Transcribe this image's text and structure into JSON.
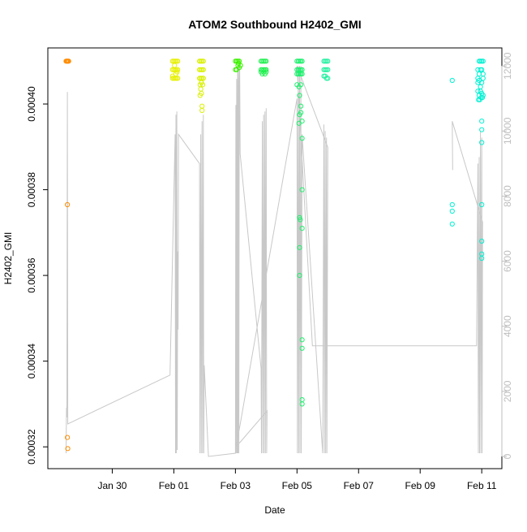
{
  "chart_data": {
    "type": "scatter",
    "title": "ATOM2 Southbound H2402_GMI",
    "xlabel": "Date",
    "ylabel": "H2402_GMI",
    "xlim": [
      "2018-01-28T06:00",
      "2018-02-11T10:00"
    ],
    "ylim": [
      0.000317,
      0.000411
    ],
    "y2lim": [
      -100,
      12280
    ],
    "x_ticks": [
      {
        "t": "2018-01-30",
        "label": "Jan 30"
      },
      {
        "t": "2018-02-01",
        "label": "Feb 01"
      },
      {
        "t": "2018-02-03",
        "label": "Feb 03"
      },
      {
        "t": "2018-02-05",
        "label": "Feb 05"
      },
      {
        "t": "2018-02-07",
        "label": "Feb 07"
      },
      {
        "t": "2018-02-09",
        "label": "Feb 09"
      },
      {
        "t": "2018-02-11",
        "label": "Feb 11"
      }
    ],
    "y_ticks": [
      {
        "v": 0.00032,
        "label": "0.00032"
      },
      {
        "v": 0.00034,
        "label": "0.00034"
      },
      {
        "v": 0.00036,
        "label": "0.00036"
      },
      {
        "v": 0.00038,
        "label": "0.00038"
      },
      {
        "v": 0.0004,
        "label": "0.00040"
      }
    ],
    "y2_ticks": [
      {
        "v": 0,
        "label": "0"
      },
      {
        "v": 2000,
        "label": "2000"
      },
      {
        "v": 4000,
        "label": "4000"
      },
      {
        "v": 6000,
        "label": "6000"
      },
      {
        "v": 8000,
        "label": "8000"
      },
      {
        "v": 10000,
        "label": "10000"
      },
      {
        "v": 12000,
        "label": "12000"
      }
    ],
    "grid": false,
    "legend": "none",
    "colors": {
      "axis": "#000000",
      "secondary_axis": "#bebebe",
      "secondary_line": "#c8c8c8",
      "clusters": [
        "#ff8c00",
        "#e6f000",
        "#d9f000",
        "#3cf000",
        "#22f050",
        "#1ef06e",
        "#24f0a0",
        "#00f0d2"
      ]
    },
    "secondary_series": {
      "axis": "right",
      "style": "line",
      "points": [
        [
          "2018-01-28T12:00",
          100
        ],
        [
          "2018-01-28T12:20",
          1500
        ],
        [
          "2018-01-28T12:40",
          1200
        ],
        [
          "2018-01-28T13:00",
          11200
        ],
        [
          "2018-01-28T13:20",
          1000
        ],
        [
          "2018-01-31T21:00",
          2500
        ],
        [
          "2018-02-01T01:00",
          9900
        ],
        [
          "2018-02-01T01:20",
          100
        ],
        [
          "2018-02-01T01:40",
          10500
        ],
        [
          "2018-02-01T02:00",
          100
        ],
        [
          "2018-02-01T02:20",
          10600
        ],
        [
          "2018-02-01T02:40",
          200
        ],
        [
          "2018-02-01T03:00",
          6300
        ],
        [
          "2018-02-01T03:20",
          3900
        ],
        [
          "2018-02-01T03:40",
          9900
        ],
        [
          "2018-02-01T20:00",
          9000
        ],
        [
          "2018-02-01T20:20",
          100
        ],
        [
          "2018-02-01T21:00",
          9900
        ],
        [
          "2018-02-01T21:20",
          100
        ],
        [
          "2018-02-01T22:00",
          10300
        ],
        [
          "2018-02-01T22:20",
          100
        ],
        [
          "2018-02-01T23:00",
          10500
        ],
        [
          "2018-02-01T23:20",
          100
        ],
        [
          "2018-02-01T23:40",
          2800
        ],
        [
          "2018-02-02T03:00",
          0
        ],
        [
          "2018-02-03T00:00",
          100
        ],
        [
          "2018-02-03T00:20",
          10800
        ],
        [
          "2018-02-03T00:40",
          100
        ],
        [
          "2018-02-03T01:00",
          11600
        ],
        [
          "2018-02-03T01:20",
          100
        ],
        [
          "2018-02-03T01:40",
          11900
        ],
        [
          "2018-02-03T02:00",
          100
        ],
        [
          "2018-02-03T02:20",
          12000
        ],
        [
          "2018-02-03T02:40",
          100
        ],
        [
          "2018-02-03T03:00",
          11500
        ],
        [
          "2018-02-03T03:20",
          12000
        ],
        [
          "2018-02-03T03:40",
          9300
        ],
        [
          "2018-02-03T20:00",
          2700
        ],
        [
          "2018-02-03T20:20",
          100
        ],
        [
          "2018-02-03T21:00",
          10300
        ],
        [
          "2018-02-03T21:20",
          100
        ],
        [
          "2018-02-03T22:00",
          10500
        ],
        [
          "2018-02-03T22:20",
          100
        ],
        [
          "2018-02-03T23:00",
          10600
        ],
        [
          "2018-02-03T23:20",
          100
        ],
        [
          "2018-02-04T00:00",
          10700
        ],
        [
          "2018-02-04T00:20",
          100
        ],
        [
          "2018-02-04T00:40",
          1400
        ],
        [
          "2018-02-03T00:40",
          300
        ],
        [
          "2018-02-05T00:00",
          11000
        ],
        [
          "2018-02-05T00:20",
          100
        ],
        [
          "2018-02-05T01:00",
          12000
        ],
        [
          "2018-02-05T01:20",
          100
        ],
        [
          "2018-02-05T02:00",
          12000
        ],
        [
          "2018-02-05T02:20",
          100
        ],
        [
          "2018-02-05T03:00",
          12000
        ],
        [
          "2018-02-05T03:20",
          100
        ],
        [
          "2018-02-05T04:00",
          9900
        ],
        [
          "2018-02-05T20:00",
          100
        ],
        [
          "2018-02-05T21:00",
          10200
        ],
        [
          "2018-02-05T21:20",
          100
        ],
        [
          "2018-02-05T22:00",
          10000
        ],
        [
          "2018-02-05T22:20",
          100
        ],
        [
          "2018-02-05T23:00",
          9800
        ],
        [
          "2018-02-05T23:20",
          100
        ],
        [
          "2018-02-06T00:00",
          9500
        ],
        [
          "2018-02-05T00:00",
          12000
        ],
        [
          "2018-02-05T12:00",
          3400
        ],
        [
          "2018-02-10T20:00",
          3400
        ],
        [
          "2018-02-10T21:00",
          9000
        ],
        [
          "2018-02-10T21:20",
          100
        ],
        [
          "2018-02-10T22:00",
          9200
        ],
        [
          "2018-02-10T22:20",
          100
        ],
        [
          "2018-02-10T23:00",
          10000
        ],
        [
          "2018-02-10T23:20",
          100
        ],
        [
          "2018-02-11T00:00",
          9800
        ],
        [
          "2018-02-11T00:20",
          100
        ],
        [
          "2018-02-11T00:40",
          7200
        ],
        [
          "2018-02-10T01:00",
          10300
        ],
        [
          "2018-02-10T01:20",
          8800
        ]
      ]
    },
    "series": [
      {
        "color": "#ff8c00",
        "points": [
          [
            "2018-01-28T12:00",
            0.00041
          ],
          [
            "2018-01-28T12:30",
            0.00041
          ],
          [
            "2018-01-28T13:00",
            0.00041
          ],
          [
            "2018-01-28T13:30",
            0.00041
          ],
          [
            "2018-01-28T14:00",
            0.00041
          ],
          [
            "2018-01-28T13:00",
            0.0003765
          ],
          [
            "2018-01-28T13:00",
            0.0003222
          ],
          [
            "2018-01-28T13:20",
            0.0003196
          ]
        ]
      },
      {
        "color": "#e6f000",
        "points": [
          [
            "2018-01-31T23:00",
            0.00041
          ],
          [
            "2018-02-01T00:00",
            0.00041
          ],
          [
            "2018-02-01T01:00",
            0.00041
          ],
          [
            "2018-02-01T02:00",
            0.00041
          ],
          [
            "2018-02-01T03:00",
            0.00041
          ],
          [
            "2018-01-31T23:00",
            0.000408
          ],
          [
            "2018-02-01T00:00",
            0.000408
          ],
          [
            "2018-02-01T01:00",
            0.000408
          ],
          [
            "2018-02-01T02:00",
            0.000408
          ],
          [
            "2018-02-01T03:00",
            0.000408
          ],
          [
            "2018-01-31T23:00",
            0.000406
          ],
          [
            "2018-02-01T00:00",
            0.000406
          ],
          [
            "2018-02-01T01:00",
            0.000406
          ],
          [
            "2018-02-01T02:00",
            0.000406
          ],
          [
            "2018-02-01T03:00",
            0.000406
          ],
          [
            "2018-01-31T23:00",
            0.0004065
          ],
          [
            "2018-02-01T02:30",
            0.0004075
          ],
          [
            "2018-02-01T00:30",
            0.000409
          ],
          [
            "2018-02-01T01:30",
            0.000407
          ]
        ]
      },
      {
        "color": "#d9f000",
        "points": [
          [
            "2018-02-01T20:00",
            0.00041
          ],
          [
            "2018-02-01T21:00",
            0.00041
          ],
          [
            "2018-02-01T22:00",
            0.00041
          ],
          [
            "2018-02-01T23:00",
            0.00041
          ],
          [
            "2018-02-01T20:00",
            0.000408
          ],
          [
            "2018-02-01T21:00",
            0.000408
          ],
          [
            "2018-02-01T22:00",
            0.000408
          ],
          [
            "2018-02-01T23:00",
            0.000408
          ],
          [
            "2018-02-01T20:00",
            0.000406
          ],
          [
            "2018-02-01T21:00",
            0.000406
          ],
          [
            "2018-02-01T22:00",
            0.000406
          ],
          [
            "2018-02-01T23:00",
            0.000406
          ],
          [
            "2018-02-01T20:30",
            0.0004045
          ],
          [
            "2018-02-01T21:30",
            0.000405
          ],
          [
            "2018-02-01T22:30",
            0.0004045
          ],
          [
            "2018-02-01T21:00",
            0.0004035
          ],
          [
            "2018-02-01T20:30",
            0.000402
          ],
          [
            "2018-02-01T21:30",
            0.0004025
          ],
          [
            "2018-02-01T22:00",
            0.0003995
          ],
          [
            "2018-02-01T22:00",
            0.0003985
          ]
        ]
      },
      {
        "color": "#3cf000",
        "points": [
          [
            "2018-02-03T00:00",
            0.00041
          ],
          [
            "2018-02-03T01:00",
            0.00041
          ],
          [
            "2018-02-03T02:00",
            0.00041
          ],
          [
            "2018-02-03T03:00",
            0.00041
          ],
          [
            "2018-02-03T00:00",
            0.000408
          ],
          [
            "2018-02-03T01:00",
            0.000408
          ],
          [
            "2018-02-03T02:00",
            0.000409
          ],
          [
            "2018-02-03T03:00",
            0.0004085
          ],
          [
            "2018-02-03T04:00",
            0.000409
          ],
          [
            "2018-02-03T02:30",
            0.0004095
          ]
        ]
      },
      {
        "color": "#22f050",
        "points": [
          [
            "2018-02-03T20:00",
            0.00041
          ],
          [
            "2018-02-03T21:00",
            0.00041
          ],
          [
            "2018-02-03T22:00",
            0.00041
          ],
          [
            "2018-02-03T23:00",
            0.00041
          ],
          [
            "2018-02-04T00:00",
            0.00041
          ],
          [
            "2018-02-03T20:00",
            0.000408
          ],
          [
            "2018-02-03T21:00",
            0.000408
          ],
          [
            "2018-02-03T22:00",
            0.000408
          ],
          [
            "2018-02-03T23:00",
            0.000408
          ],
          [
            "2018-02-04T00:00",
            0.000408
          ],
          [
            "2018-02-03T20:00",
            0.0004075
          ],
          [
            "2018-02-03T21:00",
            0.000407
          ],
          [
            "2018-02-03T22:00",
            0.0004075
          ],
          [
            "2018-02-03T23:00",
            0.000407
          ],
          [
            "2018-02-04T00:00",
            0.0004075
          ]
        ]
      },
      {
        "color": "#1ef06e",
        "points": [
          [
            "2018-02-05T00:00",
            0.00041
          ],
          [
            "2018-02-05T01:00",
            0.00041
          ],
          [
            "2018-02-05T02:00",
            0.00041
          ],
          [
            "2018-02-05T03:00",
            0.00041
          ],
          [
            "2018-02-05T04:00",
            0.00041
          ],
          [
            "2018-02-05T00:00",
            0.000408
          ],
          [
            "2018-02-05T01:00",
            0.000408
          ],
          [
            "2018-02-05T02:00",
            0.000408
          ],
          [
            "2018-02-05T03:00",
            0.000408
          ],
          [
            "2018-02-05T04:00",
            0.000408
          ],
          [
            "2018-02-05T00:00",
            0.000407
          ],
          [
            "2018-02-05T01:00",
            0.000407
          ],
          [
            "2018-02-05T02:00",
            0.000407
          ],
          [
            "2018-02-05T03:00",
            0.000407
          ],
          [
            "2018-02-05T04:00",
            0.000407
          ],
          [
            "2018-02-05T00:00",
            0.0004045
          ],
          [
            "2018-02-05T01:30",
            0.000404
          ],
          [
            "2018-02-05T03:00",
            0.0004045
          ],
          [
            "2018-02-05T02:00",
            0.000402
          ],
          [
            "2018-02-05T03:00",
            0.0003995
          ],
          [
            "2018-02-05T03:00",
            0.000398
          ],
          [
            "2018-02-05T02:00",
            0.0003975
          ],
          [
            "2018-02-05T04:00",
            0.000396
          ],
          [
            "2018-02-05T01:30",
            0.0003955
          ],
          [
            "2018-02-05T04:00",
            0.000392
          ],
          [
            "2018-02-05T04:00",
            0.00038
          ],
          [
            "2018-02-05T02:00",
            0.0003735
          ],
          [
            "2018-02-05T02:30",
            0.000373
          ],
          [
            "2018-02-05T04:00",
            0.000371
          ],
          [
            "2018-02-05T02:00",
            0.0003665
          ],
          [
            "2018-02-05T02:00",
            0.00036
          ],
          [
            "2018-02-05T04:00",
            0.000345
          ],
          [
            "2018-02-05T04:00",
            0.000343
          ],
          [
            "2018-02-05T04:00",
            0.000331
          ],
          [
            "2018-02-05T04:00",
            0.00033
          ]
        ]
      },
      {
        "color": "#24f0a0",
        "points": [
          [
            "2018-02-05T21:00",
            0.00041
          ],
          [
            "2018-02-05T22:00",
            0.00041
          ],
          [
            "2018-02-05T23:00",
            0.00041
          ],
          [
            "2018-02-06T00:00",
            0.00041
          ],
          [
            "2018-02-05T21:00",
            0.000408
          ],
          [
            "2018-02-05T22:00",
            0.000408
          ],
          [
            "2018-02-05T23:00",
            0.000408
          ],
          [
            "2018-02-06T00:00",
            0.000408
          ],
          [
            "2018-02-05T21:00",
            0.0004065
          ],
          [
            "2018-02-05T22:00",
            0.0004065
          ],
          [
            "2018-02-05T23:00",
            0.000406
          ],
          [
            "2018-02-06T00:00",
            0.000406
          ]
        ]
      },
      {
        "color": "#00f0d2",
        "points": [
          [
            "2018-02-10T01:00",
            0.0004055
          ],
          [
            "2018-02-10T01:00",
            0.0003765
          ],
          [
            "2018-02-10T01:00",
            0.000375
          ],
          [
            "2018-02-10T01:00",
            0.000372
          ],
          [
            "2018-02-10T21:00",
            0.000408
          ],
          [
            "2018-02-10T22:00",
            0.00041
          ],
          [
            "2018-02-10T23:00",
            0.00041
          ],
          [
            "2018-02-11T00:00",
            0.00041
          ],
          [
            "2018-02-11T01:00",
            0.00041
          ],
          [
            "2018-02-10T21:00",
            0.000406
          ],
          [
            "2018-02-10T22:00",
            0.000407
          ],
          [
            "2018-02-10T23:00",
            0.000408
          ],
          [
            "2018-02-11T00:00",
            0.000408
          ],
          [
            "2018-02-11T01:00",
            0.000407
          ],
          [
            "2018-02-10T21:00",
            0.000405
          ],
          [
            "2018-02-10T22:00",
            0.0004055
          ],
          [
            "2018-02-10T23:00",
            0.000404
          ],
          [
            "2018-02-11T00:00",
            0.000405
          ],
          [
            "2018-02-11T01:00",
            0.000406
          ],
          [
            "2018-02-10T21:00",
            0.000403
          ],
          [
            "2018-02-10T22:00",
            0.000402
          ],
          [
            "2018-02-10T23:00",
            0.000403
          ],
          [
            "2018-02-11T00:00",
            0.0004025
          ],
          [
            "2018-02-11T01:00",
            0.000402
          ],
          [
            "2018-02-10T21:30",
            0.000401
          ],
          [
            "2018-02-10T22:30",
            0.000401
          ],
          [
            "2018-02-10T23:30",
            0.0004015
          ],
          [
            "2018-02-11T00:30",
            0.0004015
          ],
          [
            "2018-02-11T00:00",
            0.000396
          ],
          [
            "2018-02-11T00:00",
            0.000394
          ],
          [
            "2018-02-11T00:00",
            0.000391
          ],
          [
            "2018-02-11T00:00",
            0.0003765
          ],
          [
            "2018-02-11T00:00",
            0.000368
          ],
          [
            "2018-02-11T00:00",
            0.000365
          ],
          [
            "2018-02-11T00:00",
            0.000364
          ]
        ]
      }
    ]
  }
}
